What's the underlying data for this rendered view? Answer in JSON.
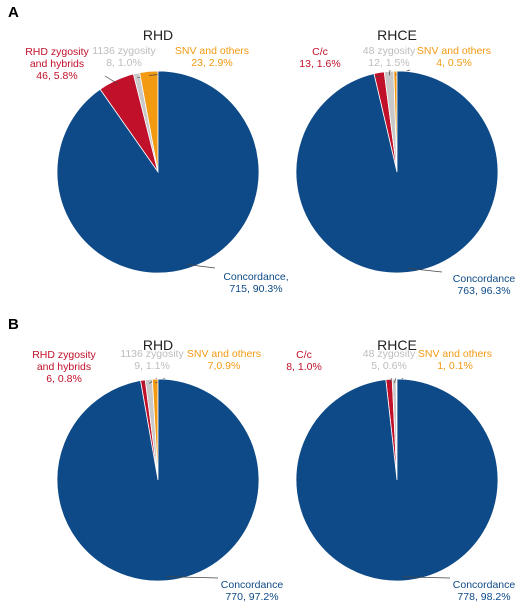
{
  "colors": {
    "concordance": "#0e4a87",
    "zygosity_hybrids": "#c0102a",
    "zygosity_1136": "#c9c9c9",
    "snv": "#f29a12"
  },
  "panels": [
    {
      "letter": "A"
    },
    {
      "letter": "B"
    }
  ],
  "chart_data": [
    {
      "panel": "A",
      "type": "pie",
      "title": "RHD",
      "slices": [
        {
          "lines": [
            "RHD zygosity",
            "and hybrids",
            "46, 5.8%"
          ],
          "count": 46,
          "percent": 5.8,
          "color_key": "zygosity_hybrids"
        },
        {
          "lines": [
            "1136 zygosity",
            "8, 1.0%"
          ],
          "count": 8,
          "percent": 1.0,
          "color_key": "zygosity_1136"
        },
        {
          "lines": [
            "SNV and others",
            "23, 2.9%"
          ],
          "count": 23,
          "percent": 2.9,
          "color_key": "snv"
        },
        {
          "lines": [
            "Concordance,",
            "715, 90.3%"
          ],
          "count": 715,
          "percent": 90.3,
          "color_key": "concordance"
        }
      ]
    },
    {
      "panel": "A",
      "type": "pie",
      "title": "RHCE",
      "slices": [
        {
          "lines": [
            "C/c",
            "13, 1.6%"
          ],
          "count": 13,
          "percent": 1.6,
          "color_key": "zygosity_hybrids"
        },
        {
          "lines": [
            "48 zygosity",
            "12, 1.5%"
          ],
          "count": 12,
          "percent": 1.5,
          "color_key": "zygosity_1136"
        },
        {
          "lines": [
            "SNV and others",
            "4, 0.5%"
          ],
          "count": 4,
          "percent": 0.5,
          "color_key": "snv"
        },
        {
          "lines": [
            "Concordance",
            "763, 96.3%"
          ],
          "count": 763,
          "percent": 96.3,
          "color_key": "concordance"
        }
      ]
    },
    {
      "panel": "B",
      "type": "pie",
      "title": "RHD",
      "slices": [
        {
          "lines": [
            "RHD zygosity",
            "and hybrids",
            "6, 0.8%"
          ],
          "count": 6,
          "percent": 0.8,
          "color_key": "zygosity_hybrids"
        },
        {
          "lines": [
            "1136 zygosity",
            "9, 1.1%"
          ],
          "count": 9,
          "percent": 1.1,
          "color_key": "zygosity_1136"
        },
        {
          "lines": [
            "SNV and others",
            "7,0.9%"
          ],
          "count": 7,
          "percent": 0.9,
          "color_key": "snv"
        },
        {
          "lines": [
            "Concordance",
            "770, 97.2%"
          ],
          "count": 770,
          "percent": 97.2,
          "color_key": "concordance"
        }
      ]
    },
    {
      "panel": "B",
      "type": "pie",
      "title": "RHCE",
      "slices": [
        {
          "lines": [
            "C/c",
            "8, 1.0%"
          ],
          "count": 8,
          "percent": 1.0,
          "color_key": "zygosity_hybrids"
        },
        {
          "lines": [
            "48 zygosity",
            "5, 0.6%"
          ],
          "count": 5,
          "percent": 0.6,
          "color_key": "zygosity_1136"
        },
        {
          "lines": [
            "SNV and others",
            "1, 0.1%"
          ],
          "count": 1,
          "percent": 0.1,
          "color_key": "snv"
        },
        {
          "lines": [
            "Concordance",
            "778, 98.2%"
          ],
          "count": 778,
          "percent": 98.2,
          "color_key": "concordance"
        }
      ]
    }
  ]
}
